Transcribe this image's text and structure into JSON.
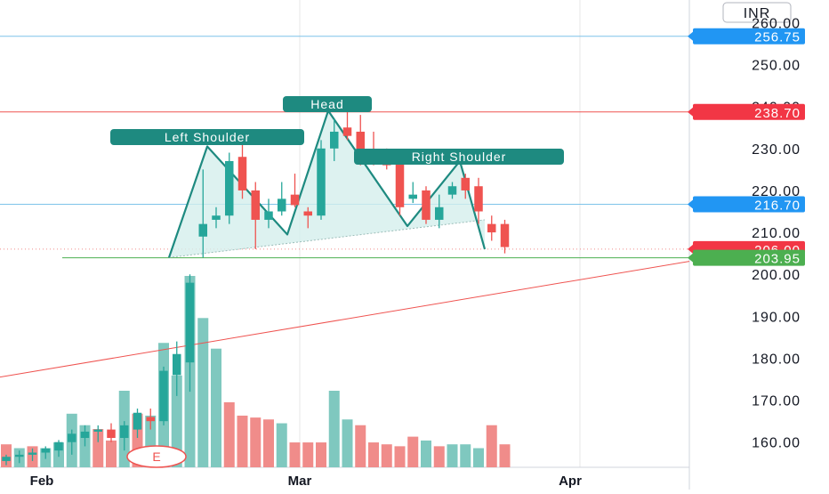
{
  "currency": "INR",
  "earnings_marker": "E",
  "colors": {
    "up": "#26a69a",
    "down": "#ef5350",
    "vol_up": "#7fc8bf",
    "vol_down": "#f08c8a",
    "pattern": "#1e8a80",
    "pattern_fill": "#d4efec",
    "blue_line": "#7ec3ea",
    "red_line": "#ef5350",
    "green_line": "#4caf50",
    "tag_blue": "#2196f3",
    "tag_red": "#f23645",
    "tag_green": "#4caf50",
    "grid": "#e7e7e7"
  },
  "chart_data": {
    "type": "candlestick",
    "ylim": [
      154,
      262
    ],
    "y_ticks": [
      "260.00",
      "250.00",
      "240.00",
      "230.00",
      "220.00",
      "210.00",
      "200.00",
      "190.00",
      "180.00",
      "170.00",
      "160.00"
    ],
    "x_labels": [
      "Feb",
      "Mar",
      "Apr"
    ],
    "price_tags": [
      {
        "label": "256.75",
        "value": 256.75,
        "color": "blue"
      },
      {
        "label": "238.70",
        "value": 238.7,
        "color": "red"
      },
      {
        "label": "216.70",
        "value": 216.7,
        "color": "blue"
      },
      {
        "label": "206.00",
        "value": 206.0,
        "color": "red"
      },
      {
        "label": "203.95",
        "value": 203.95,
        "color": "green"
      }
    ],
    "annotations": [
      "Left Shoulder",
      "Head",
      "Right Shoulder"
    ],
    "candles": [
      {
        "o": 155.5,
        "h": 157,
        "l": 154.5,
        "c": 156.5
      },
      {
        "o": 156.5,
        "h": 158,
        "l": 155,
        "c": 157
      },
      {
        "o": 157,
        "h": 158.5,
        "l": 155.5,
        "c": 157.5
      },
      {
        "o": 157.5,
        "h": 159,
        "l": 156,
        "c": 158.5
      },
      {
        "o": 158,
        "h": 160.5,
        "l": 156.5,
        "c": 160
      },
      {
        "o": 160,
        "h": 163,
        "l": 157,
        "c": 162
      },
      {
        "o": 161,
        "h": 164,
        "l": 159,
        "c": 162.5
      },
      {
        "o": 162.5,
        "h": 164,
        "l": 160,
        "c": 163
      },
      {
        "o": 163,
        "h": 164.5,
        "l": 160,
        "c": 161
      },
      {
        "o": 161,
        "h": 165,
        "l": 158,
        "c": 164
      },
      {
        "o": 163,
        "h": 168,
        "l": 161,
        "c": 167
      },
      {
        "o": 166,
        "h": 168,
        "l": 163,
        "c": 165
      },
      {
        "o": 165,
        "h": 178,
        "l": 164,
        "c": 177
      },
      {
        "o": 176,
        "h": 184,
        "l": 171,
        "c": 181
      },
      {
        "o": 179,
        "h": 200,
        "l": 172,
        "c": 198
      },
      {
        "o": 209,
        "h": 225,
        "l": 204,
        "c": 212
      },
      {
        "o": 213,
        "h": 216,
        "l": 211,
        "c": 214
      },
      {
        "o": 214,
        "h": 229,
        "l": 212,
        "c": 227
      },
      {
        "o": 228,
        "h": 231,
        "l": 218,
        "c": 220
      },
      {
        "o": 220,
        "h": 222,
        "l": 206,
        "c": 213
      },
      {
        "o": 213,
        "h": 218,
        "l": 211,
        "c": 215
      },
      {
        "o": 215,
        "h": 222,
        "l": 214,
        "c": 218
      },
      {
        "o": 219,
        "h": 224,
        "l": 216,
        "c": 216.5
      },
      {
        "o": 215,
        "h": 216,
        "l": 211,
        "c": 214
      },
      {
        "o": 214,
        "h": 232,
        "l": 213,
        "c": 230
      },
      {
        "o": 230,
        "h": 237,
        "l": 227,
        "c": 234
      },
      {
        "o": 235,
        "h": 239,
        "l": 232,
        "c": 233
      },
      {
        "o": 234,
        "h": 238,
        "l": 226,
        "c": 228
      },
      {
        "o": 228,
        "h": 234,
        "l": 226,
        "c": 227
      },
      {
        "o": 228,
        "h": 230,
        "l": 225,
        "c": 226
      },
      {
        "o": 227,
        "h": 229,
        "l": 214,
        "c": 216
      },
      {
        "o": 218,
        "h": 222,
        "l": 217,
        "c": 219
      },
      {
        "o": 220,
        "h": 221,
        "l": 212,
        "c": 213
      },
      {
        "o": 213,
        "h": 219,
        "l": 211,
        "c": 216
      },
      {
        "o": 219,
        "h": 222,
        "l": 218,
        "c": 221
      },
      {
        "o": 223,
        "h": 224,
        "l": 218,
        "c": 220
      },
      {
        "o": 221,
        "h": 223,
        "l": 212,
        "c": 215
      },
      {
        "o": 212,
        "h": 214,
        "l": 208,
        "c": 210
      },
      {
        "o": 212,
        "h": 213,
        "l": 205,
        "c": 206.5
      }
    ],
    "volume": [
      {
        "v": 0.12,
        "up": false
      },
      {
        "v": 0.1,
        "up": true
      },
      {
        "v": 0.11,
        "up": false
      },
      {
        "v": 0.1,
        "up": true
      },
      {
        "v": 0.13,
        "up": true
      },
      {
        "v": 0.28,
        "up": true
      },
      {
        "v": 0.22,
        "up": true
      },
      {
        "v": 0.2,
        "up": false
      },
      {
        "v": 0.14,
        "up": false
      },
      {
        "v": 0.4,
        "up": true
      },
      {
        "v": 0.28,
        "up": false
      },
      {
        "v": 0.27,
        "up": true
      },
      {
        "v": 0.65,
        "up": true
      },
      {
        "v": 0.48,
        "up": true
      },
      {
        "v": 1.0,
        "up": true
      },
      {
        "v": 0.78,
        "up": true
      },
      {
        "v": 0.62,
        "up": true
      },
      {
        "v": 0.34,
        "up": false
      },
      {
        "v": 0.27,
        "up": false
      },
      {
        "v": 0.26,
        "up": false
      },
      {
        "v": 0.25,
        "up": false
      },
      {
        "v": 0.23,
        "up": true
      },
      {
        "v": 0.13,
        "up": false
      },
      {
        "v": 0.13,
        "up": false
      },
      {
        "v": 0.13,
        "up": false
      },
      {
        "v": 0.4,
        "up": true
      },
      {
        "v": 0.25,
        "up": true
      },
      {
        "v": 0.22,
        "up": false
      },
      {
        "v": 0.13,
        "up": false
      },
      {
        "v": 0.12,
        "up": false
      },
      {
        "v": 0.11,
        "up": false
      },
      {
        "v": 0.16,
        "up": false
      },
      {
        "v": 0.14,
        "up": true
      },
      {
        "v": 0.11,
        "up": false
      },
      {
        "v": 0.12,
        "up": true
      },
      {
        "v": 0.12,
        "up": true
      },
      {
        "v": 0.1,
        "up": true
      },
      {
        "v": 0.22,
        "up": false
      },
      {
        "v": 0.12,
        "up": false
      }
    ]
  }
}
